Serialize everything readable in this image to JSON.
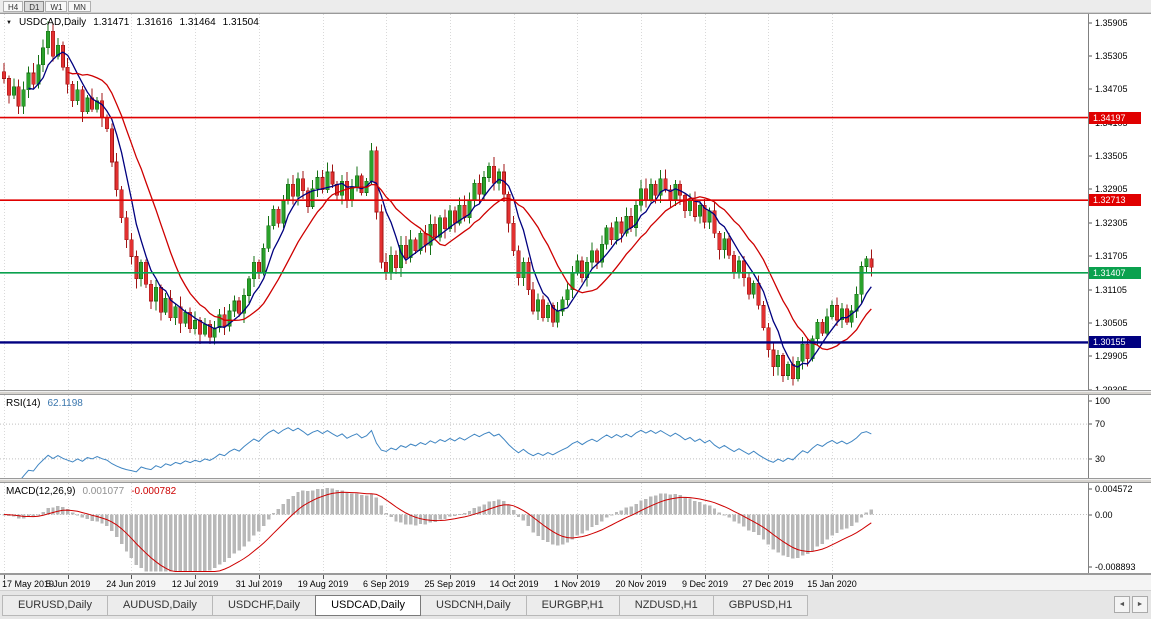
{
  "period_bar": {
    "buttons": [
      {
        "label": "H4",
        "active": false
      },
      {
        "label": "D1",
        "active": true
      },
      {
        "label": "W1",
        "active": false
      },
      {
        "label": "MN",
        "active": false
      }
    ]
  },
  "main_chart": {
    "title": {
      "symbol": "USDCAD,Daily",
      "open": "1.31471",
      "high": "1.31616",
      "low": "1.31464",
      "close": "1.31504"
    },
    "price_axis_ticks": [
      "1.35905",
      "1.35305",
      "1.34705",
      "1.34105",
      "1.33505",
      "1.32905",
      "1.32305",
      "1.31705",
      "1.31105",
      "1.30505",
      "1.29905",
      "1.29305"
    ],
    "hlines": [
      {
        "price": 1.34197,
        "label": "1.34197",
        "color": "#e00000",
        "thickness": 2
      },
      {
        "price": 1.32713,
        "label": "1.32713",
        "color": "#e00000",
        "thickness": 2
      },
      {
        "price": 1.31407,
        "label": "1.31407",
        "color": "#0aa14e",
        "thickness": 2
      },
      {
        "price": 1.30155,
        "label": "1.30155",
        "color": "#000080",
        "thickness": 3
      }
    ]
  },
  "rsi_panel": {
    "name": "RSI(14)",
    "value": "62.1198",
    "axis_labels": [
      "100",
      "70",
      "30"
    ],
    "level_values": [
      100,
      70,
      30
    ],
    "dotted_levels": [
      70,
      30
    ]
  },
  "macd_panel": {
    "name": "MACD(12,26,9)",
    "value_main": "0.001077",
    "value_signal": "-0.000782",
    "axis_labels": [
      "0.004572",
      "0.00",
      "-0.008893"
    ]
  },
  "date_axis": {
    "labels": [
      "17 May 2019",
      "5 Jun 2019",
      "24 Jun 2019",
      "12 Jul 2019",
      "31 Jul 2019",
      "19 Aug 2019",
      "6 Sep 2019",
      "25 Sep 2019",
      "14 Oct 2019",
      "1 Nov 2019",
      "20 Nov 2019",
      "9 Dec 2019",
      "27 Dec 2019",
      "15 Jan 2020"
    ]
  },
  "tab_bar": {
    "tabs": [
      {
        "label": "EURUSD,Daily",
        "active": false
      },
      {
        "label": "AUDUSD,Daily",
        "active": false
      },
      {
        "label": "USDCHF,Daily",
        "active": false
      },
      {
        "label": "USDCAD,Daily",
        "active": true
      },
      {
        "label": "USDCNH,Daily",
        "active": false
      },
      {
        "label": "EURGBP,H1",
        "active": false
      },
      {
        "label": "NZDUSD,H1",
        "active": false
      },
      {
        "label": "GBPUSD,H1",
        "active": false
      }
    ]
  },
  "icons": {
    "dropdown_arrow": "▼",
    "scroll_left": "◄",
    "scroll_right": "►"
  },
  "colors": {
    "candle_up_fill": "#2aa12a",
    "candle_up_stroke": "#157015",
    "candle_down_fill": "#e23030",
    "candle_down_stroke": "#a01414",
    "ma_fast": "#00007f",
    "ma_slow": "#ce0000",
    "rsi_line": "#3f85c2",
    "macd_hist": "#b8b8b8",
    "macd_signal": "#ce0000",
    "grid": "#d9d9d9",
    "level_line": "#c0c0c0"
  },
  "chart_data": {
    "type": "candlestick",
    "symbol": "USDCAD",
    "timeframe": "Daily",
    "bars_total": 178,
    "current_bar": {
      "open": 1.31471,
      "high": 1.31616,
      "low": 1.31464,
      "close": 1.31504
    },
    "price_range": {
      "top": 1.3606,
      "bottom": 1.293
    },
    "horizontal_lines": [
      1.34197,
      1.32713,
      1.31407,
      1.30155
    ],
    "gridline_bar_indexes": [
      0,
      13,
      26,
      39,
      52,
      65,
      78,
      91,
      104,
      117,
      130,
      143,
      156,
      169
    ],
    "gridline_dates": [
      "17 May 2019",
      "5 Jun 2019",
      "24 Jun 2019",
      "12 Jul 2019",
      "31 Jul 2019",
      "19 Aug 2019",
      "6 Sep 2019",
      "25 Sep 2019",
      "14 Oct 2019",
      "1 Nov 2019",
      "20 Nov 2019",
      "9 Dec 2019",
      "27 Dec 2019",
      "15 Jan 2020"
    ],
    "closes": [
      1.349,
      1.346,
      1.3475,
      1.344,
      1.347,
      1.35,
      1.348,
      1.3515,
      1.3545,
      1.3575,
      1.353,
      1.355,
      1.351,
      1.348,
      1.345,
      1.347,
      1.343,
      1.3455,
      1.3435,
      1.345,
      1.342,
      1.34,
      1.334,
      1.329,
      1.324,
      1.32,
      1.317,
      1.313,
      1.316,
      1.312,
      1.309,
      1.3115,
      1.307,
      1.3095,
      1.306,
      1.308,
      1.305,
      1.307,
      1.304,
      1.3055,
      1.303,
      1.3048,
      1.3025,
      1.3042,
      1.3065,
      1.3045,
      1.3072,
      1.309,
      1.3068,
      1.31,
      1.313,
      1.316,
      1.314,
      1.3185,
      1.3225,
      1.3255,
      1.323,
      1.327,
      1.33,
      1.3278,
      1.331,
      1.3288,
      1.326,
      1.3292,
      1.3312,
      1.329,
      1.3322,
      1.33,
      1.328,
      1.3305,
      1.3272,
      1.3295,
      1.3315,
      1.3285,
      1.3305,
      1.336,
      1.325,
      1.316,
      1.314,
      1.3172,
      1.315,
      1.319,
      1.3168,
      1.32,
      1.318,
      1.3212,
      1.319,
      1.3228,
      1.3205,
      1.324,
      1.322,
      1.3252,
      1.323,
      1.3262,
      1.324,
      1.3272,
      1.3302,
      1.3282,
      1.3312,
      1.3332,
      1.3302,
      1.3322,
      1.3282,
      1.323,
      1.318,
      1.3132,
      1.316,
      1.311,
      1.3072,
      1.3092,
      1.306,
      1.3082,
      1.3052,
      1.3072,
      1.3092,
      1.311,
      1.3142,
      1.3162,
      1.3132,
      1.316,
      1.318,
      1.316,
      1.3192,
      1.3222,
      1.32,
      1.3232,
      1.3212,
      1.3242,
      1.3222,
      1.3262,
      1.3292,
      1.3272,
      1.33,
      1.328,
      1.331,
      1.329,
      1.327,
      1.33,
      1.328,
      1.3252,
      1.3272,
      1.3242,
      1.3262,
      1.3232,
      1.3252,
      1.3212,
      1.3182,
      1.3202,
      1.3172,
      1.3142,
      1.3162,
      1.3132,
      1.3102,
      1.3122,
      1.3082,
      1.3042,
      1.3002,
      1.2972,
      1.2992,
      1.2956,
      1.2976,
      1.295,
      1.2982,
      1.3012,
      1.2986,
      1.3022,
      1.3052,
      1.3032,
      1.3062,
      1.3082,
      1.3056,
      1.3076,
      1.3052,
      1.3072,
      1.3102,
      1.3152,
      1.3166,
      1.31504
    ],
    "indicators": {
      "ma_fast_period": 6,
      "ma_slow_period": 14,
      "rsi": {
        "period": 14,
        "current": 62.1198,
        "scale": [
          0,
          100
        ],
        "levels": [
          30,
          70
        ]
      },
      "macd": {
        "fast": 12,
        "slow": 26,
        "signal_period": 9,
        "current_main": 0.001077,
        "current_signal": -0.000782,
        "scale": [
          -0.0092,
          0.005
        ]
      }
    }
  }
}
